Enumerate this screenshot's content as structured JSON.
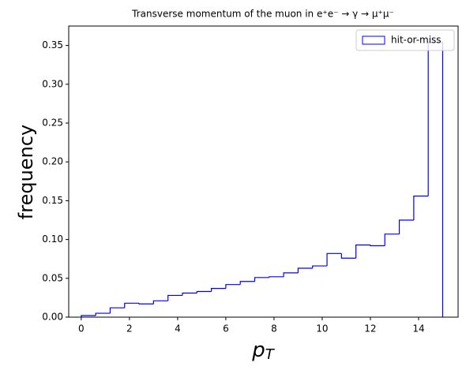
{
  "chart_data": {
    "type": "histogram",
    "title": "Transverse momentum of the muon in e⁺e⁻ → γ → μ⁺μ⁻",
    "xlabel": "pT",
    "ylabel": "frequency",
    "series": [
      {
        "name": "hit-or-miss",
        "color": "#0000ff",
        "bins": [
          0,
          0.6,
          1.2,
          1.8,
          2.4,
          3.0,
          3.6,
          4.2,
          4.8,
          5.4,
          6.0,
          6.6,
          7.2,
          7.8,
          8.4,
          9.0,
          9.6,
          10.2,
          10.8,
          11.4,
          12.0,
          12.6,
          13.2,
          13.8,
          14.4,
          15.0
        ],
        "values": [
          0.002,
          0.005,
          0.012,
          0.018,
          0.017,
          0.021,
          0.028,
          0.031,
          0.033,
          0.037,
          0.042,
          0.046,
          0.051,
          0.052,
          0.057,
          0.063,
          0.066,
          0.082,
          0.076,
          0.093,
          0.092,
          0.107,
          0.125,
          0.156,
          0.354
        ]
      }
    ],
    "xlim": [
      -0.52,
      15.64
    ],
    "ylim": [
      0,
      0.375
    ],
    "xticks": [
      0,
      2,
      4,
      6,
      8,
      10,
      12,
      14
    ],
    "yticks": [
      {
        "value": 0,
        "label": "0.00"
      },
      {
        "value": 0.05,
        "label": "0.05"
      },
      {
        "value": 0.1,
        "label": "0.10"
      },
      {
        "value": 0.15,
        "label": "0.15"
      },
      {
        "value": 0.2,
        "label": "0.20"
      },
      {
        "value": 0.25,
        "label": "0.25"
      },
      {
        "value": 0.3,
        "label": "0.30"
      },
      {
        "value": 0.35,
        "label": "0.35"
      }
    ],
    "legend": "upper right",
    "grid": false
  }
}
